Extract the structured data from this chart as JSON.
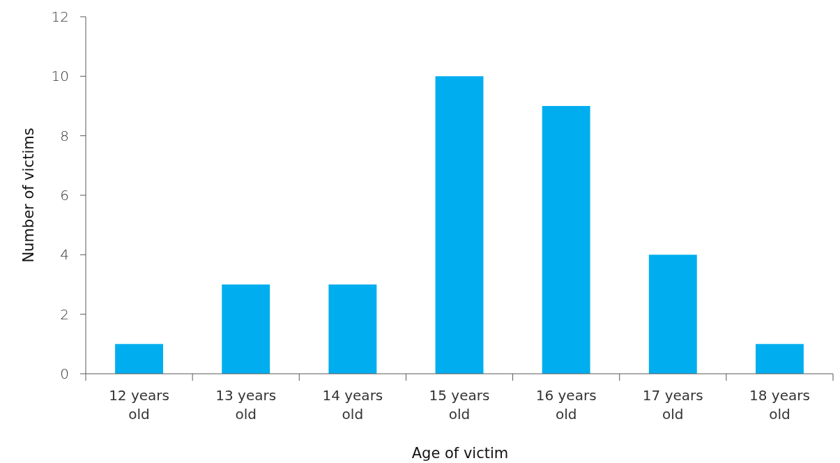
{
  "chart_data": {
    "type": "bar",
    "xlabel": "Age of victim",
    "ylabel": "Number of victims",
    "categories": [
      "12 years old",
      "13 years old",
      "14 years old",
      "15 years old",
      "16 years old",
      "17 years old",
      "18 years old"
    ],
    "values": [
      1,
      3,
      3,
      10,
      9,
      4,
      1
    ],
    "color": "#00aeef",
    "ylim": [
      0,
      12
    ],
    "yticks": [
      0,
      2,
      4,
      6,
      8,
      10,
      12
    ]
  }
}
